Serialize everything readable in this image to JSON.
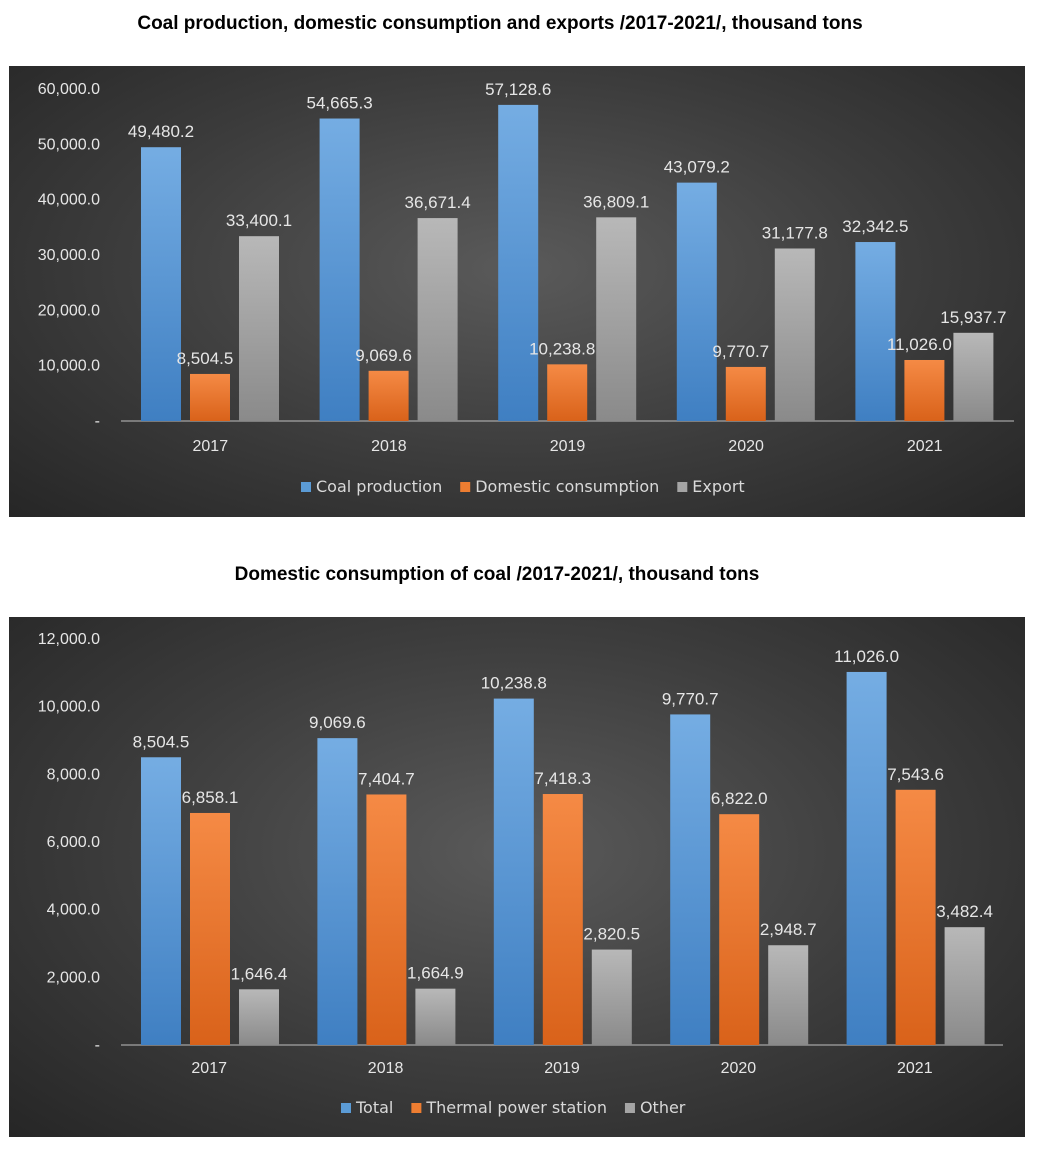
{
  "chart_data": [
    {
      "type": "bar",
      "title": "Coal production, domestic consumption and exports /2017-2021/, thousand tons",
      "categories": [
        "2017",
        "2018",
        "2019",
        "2020",
        "2021"
      ],
      "series": [
        {
          "name": "Coal production",
          "values": [
            49480.2,
            54665.3,
            57128.6,
            43079.2,
            32342.5
          ],
          "labels": [
            "49,480.2",
            "54,665.3",
            "57,128.6",
            "43,079.2",
            "32,342.5"
          ]
        },
        {
          "name": "Domestic consumption",
          "values": [
            8504.5,
            9069.6,
            10238.8,
            9770.7,
            11026.0
          ],
          "labels": [
            "8,504.5",
            "9,069.6",
            "10,238.8",
            "9,770.7",
            "11,026.0"
          ]
        },
        {
          "name": "Export",
          "values": [
            33400.1,
            36671.4,
            36809.1,
            31177.8,
            15937.7
          ],
          "labels": [
            "33,400.1",
            "36,671.4",
            "36,809.1",
            "31,177.8",
            "15,937.7"
          ]
        }
      ],
      "yticks": [
        "-",
        "10,000.0",
        "20,000.0",
        "30,000.0",
        "40,000.0",
        "50,000.0",
        "60,000.0"
      ],
      "ylim": [
        0,
        60000
      ],
      "xlabel": "",
      "ylabel": "",
      "legend": "bottom"
    },
    {
      "type": "bar",
      "title": "Domestic consumption of coal /2017-2021/, thousand tons",
      "categories": [
        "2017",
        "2018",
        "2019",
        "2020",
        "2021"
      ],
      "series": [
        {
          "name": "Total",
          "values": [
            8504.5,
            9069.6,
            10238.8,
            9770.7,
            11026.0
          ],
          "labels": [
            "8,504.5",
            "9,069.6",
            "10,238.8",
            "9,770.7",
            "11,026.0"
          ]
        },
        {
          "name": "Thermal power station",
          "values": [
            6858.1,
            7404.7,
            7418.3,
            6822.0,
            7543.6
          ],
          "labels": [
            "6,858.1",
            "7,404.7",
            "7,418.3",
            "6,822.0",
            "7,543.6"
          ]
        },
        {
          "name": "Other",
          "values": [
            1646.4,
            1664.9,
            2820.5,
            2948.7,
            3482.4
          ],
          "labels": [
            "1,646.4",
            "1,664.9",
            "2,820.5",
            "2,948.7",
            "3,482.4"
          ]
        }
      ],
      "yticks": [
        "-",
        "2,000.0",
        "4,000.0",
        "6,000.0",
        "8,000.0",
        "10,000.0",
        "12,000.0"
      ],
      "ylim": [
        0,
        12000
      ],
      "xlabel": "",
      "ylabel": "",
      "legend": "bottom"
    }
  ],
  "colors": {
    "series1": "#5b9bd5",
    "series2": "#ed7d31",
    "series3": "#a5a5a5"
  }
}
